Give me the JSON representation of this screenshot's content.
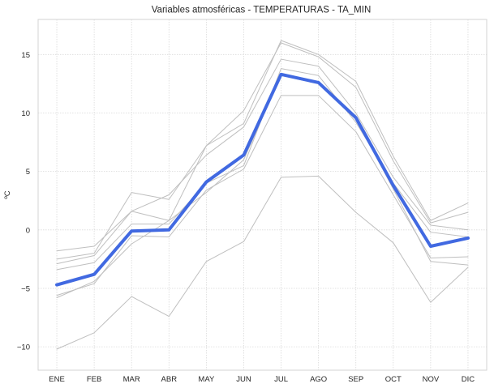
{
  "chart_data": {
    "type": "line",
    "title": "Variables atmosféricas - TEMPERATURAS - TA_MIN",
    "xlabel": "",
    "ylabel": "ºC",
    "categories": [
      "ENE",
      "FEB",
      "MAR",
      "ABR",
      "MAY",
      "JUN",
      "JUL",
      "AGO",
      "SEP",
      "OCT",
      "NOV",
      "DIC"
    ],
    "ylim": [
      -12,
      18
    ],
    "yticks": [
      -10,
      -5,
      0,
      5,
      10,
      15
    ],
    "grid": true,
    "background_series_color": "#bfbfbf",
    "highlight_color": "#4169e1",
    "series": [
      {
        "values": [
          -1.8,
          -1.4,
          1.6,
          0.8,
          7.2,
          9.1,
          16.2,
          15.0,
          12.7,
          6.3,
          0.8,
          2.3
        ],
        "highlight": false
      },
      {
        "values": [
          -2.5,
          -2.0,
          3.2,
          2.6,
          7.2,
          10.2,
          16.0,
          14.8,
          12.2,
          5.9,
          0.6,
          1.5
        ],
        "highlight": false
      },
      {
        "values": [
          -2.9,
          -2.2,
          1.6,
          3.0,
          6.4,
          8.8,
          14.6,
          14.0,
          10.0,
          4.5,
          0.4,
          0.0
        ],
        "highlight": false
      },
      {
        "values": [
          -3.4,
          -2.8,
          0.5,
          0.5,
          4.0,
          5.5,
          13.8,
          13.2,
          9.2,
          4.0,
          -0.2,
          -0.6
        ],
        "highlight": false
      },
      {
        "values": [
          -5.6,
          -4.6,
          -0.5,
          -0.6,
          3.4,
          5.2,
          11.5,
          11.5,
          8.4,
          3.0,
          -2.4,
          -2.3
        ],
        "highlight": false
      },
      {
        "values": [
          -5.8,
          -4.4,
          -1.2,
          0.8,
          3.2,
          6.0,
          13.2,
          12.5,
          9.5,
          3.5,
          -2.7,
          -3.0
        ],
        "highlight": false
      },
      {
        "values": [
          -10.2,
          -8.8,
          -5.7,
          -7.4,
          -2.7,
          -1.0,
          4.5,
          4.6,
          1.5,
          -1.1,
          -6.2,
          -3.2
        ],
        "highlight": false
      },
      {
        "values": [
          -4.7,
          -3.8,
          -0.1,
          0.0,
          4.1,
          6.4,
          13.3,
          12.6,
          9.6,
          3.8,
          -1.4,
          -0.7
        ],
        "highlight": true
      }
    ]
  }
}
